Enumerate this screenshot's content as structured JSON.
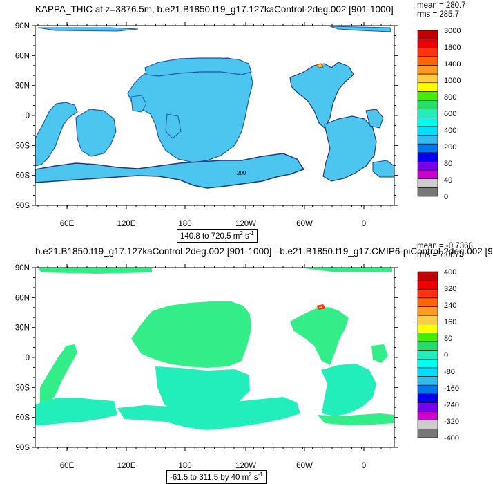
{
  "panels": [
    {
      "title": "KAPPA_THIC at z=3876.5m, b.e21.B1850.f19_g17.127kaControl-2deg.002 [901-1000]",
      "mean_label": "mean = 280.7",
      "rms_label": "rms = 285.7",
      "range_label": "140.8 to 720.5 m",
      "range_unit_sup1": "2",
      "range_unit_mid": " s",
      "range_unit_sup2": "-1",
      "colorbar": {
        "labels": [
          "3000",
          "1800",
          "1400",
          "1000",
          "800",
          "600",
          "400",
          "200",
          "80",
          "40",
          "0"
        ],
        "colors": [
          "#c00000",
          "#ee0000",
          "#ff3311",
          "#ff6600",
          "#ff9922",
          "#ffcc44",
          "#ffff00",
          "#44ee00",
          "#22dd66",
          "#22eebb",
          "#00ffee",
          "#00ddff",
          "#33bbee",
          "#0077ee",
          "#0000ee",
          "#7700ee",
          "#cc00cc",
          "#cccccc",
          "#777777"
        ]
      },
      "map_fill": "#4cc6ef"
    },
    {
      "title": "b.e21.B1850.f19_g17.127kaControl-2deg.002 [901-1000] - b.e21.B1850.f19_g17.CMIP6-piControl-2deg.002 [9",
      "mean_label": "mean = -0.7368",
      "rms_label": "rms = 7.0073",
      "range_label": "-61.5 to 311.5 by 40 m",
      "range_unit_sup1": "2",
      "range_unit_mid": " s",
      "range_unit_sup2": "-1",
      "colorbar": {
        "labels": [
          "400",
          "320",
          "240",
          "160",
          "80",
          "0",
          "-80",
          "-160",
          "-240",
          "-320",
          "-400"
        ],
        "colors": [
          "#c00000",
          "#ee0000",
          "#ff3311",
          "#ff6600",
          "#ff9922",
          "#ffcc44",
          "#ffff00",
          "#44ee00",
          "#22dd66",
          "#22eebb",
          "#00ffee",
          "#00ddff",
          "#33bbee",
          "#0077ee",
          "#0000ee",
          "#7700ee",
          "#cc00cc",
          "#cccccc",
          "#777777"
        ]
      },
      "map_fill": "#33ee88"
    }
  ],
  "axes": {
    "x_ticks": [
      "60E",
      "120E",
      "180",
      "120W",
      "60W",
      "0"
    ],
    "y_ticks": [
      "90N",
      "60N",
      "30N",
      "0",
      "30S",
      "60S",
      "90S"
    ]
  },
  "chart_data": [
    {
      "type": "heatmap",
      "title": "KAPPA_THIC at z=3876.5m, b.e21.B1850.f19_g17.127kaControl-2deg.002 [901-1000]",
      "mean": 280.7,
      "rms": 285.7,
      "min": 140.8,
      "max": 720.5,
      "units": "m2 s-1",
      "x_ticks": [
        "60E",
        "120E",
        "180",
        "120W",
        "60W",
        "0"
      ],
      "y_ticks": [
        "90N",
        "60N",
        "30N",
        "0",
        "30S",
        "60S",
        "90S"
      ],
      "colorbar_levels": [
        0,
        40,
        80,
        200,
        400,
        600,
        800,
        1000,
        1400,
        1800,
        3000
      ]
    },
    {
      "type": "heatmap",
      "title": "b.e21.B1850.f19_g17.127kaControl-2deg.002 [901-1000] - b.e21.B1850.f19_g17.CMIP6-piControl-2deg.002 [9",
      "mean": -0.7368,
      "rms": 7.0073,
      "min": -61.5,
      "max": 311.5,
      "interval": 40,
      "units": "m2 s-1",
      "x_ticks": [
        "60E",
        "120E",
        "180",
        "120W",
        "60W",
        "0"
      ],
      "y_ticks": [
        "90N",
        "60N",
        "30N",
        "0",
        "30S",
        "60S",
        "90S"
      ],
      "colorbar_levels": [
        -400,
        -320,
        -240,
        -160,
        -80,
        0,
        80,
        160,
        240,
        320,
        400
      ]
    }
  ]
}
